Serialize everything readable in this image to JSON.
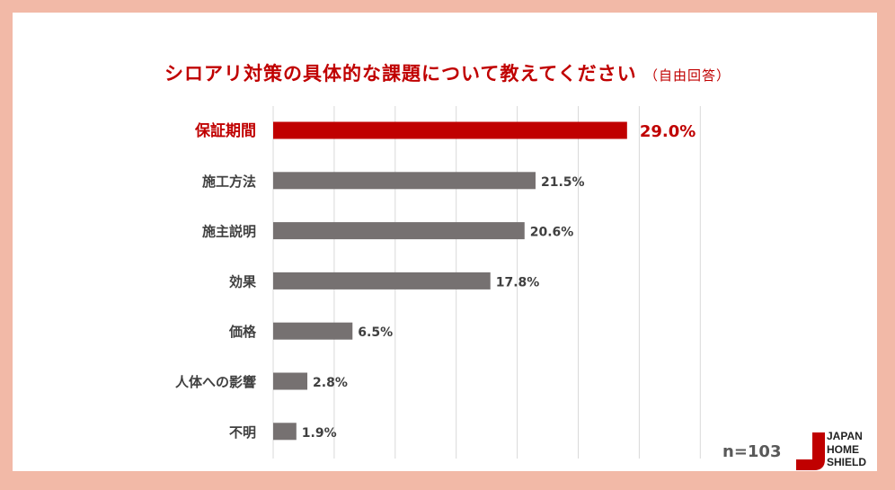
{
  "title": "シロアリ対策の具体的な課題について教えてください",
  "subtitle": "（自由回答）",
  "n_label": "n=103",
  "logo": {
    "line1": "JAPAN",
    "line2": "HOME",
    "line3": "SHIELD"
  },
  "colors": {
    "highlight": "#c00000",
    "bar": "#767171",
    "label": "#404040",
    "frame": "#f2b9a7"
  },
  "chart_data": {
    "type": "bar",
    "orientation": "horizontal",
    "categories": [
      "保証期間",
      "施工方法",
      "施主説明",
      "効果",
      "価格",
      "人体への影響",
      "不明"
    ],
    "values": [
      29.0,
      21.5,
      20.6,
      17.8,
      6.5,
      2.8,
      1.9
    ],
    "value_labels": [
      "29.0%",
      "21.5%",
      "20.6%",
      "17.8%",
      "6.5%",
      "2.8%",
      "1.9%"
    ],
    "highlight_index": 0,
    "xlim": [
      0,
      35
    ],
    "grid": true
  }
}
